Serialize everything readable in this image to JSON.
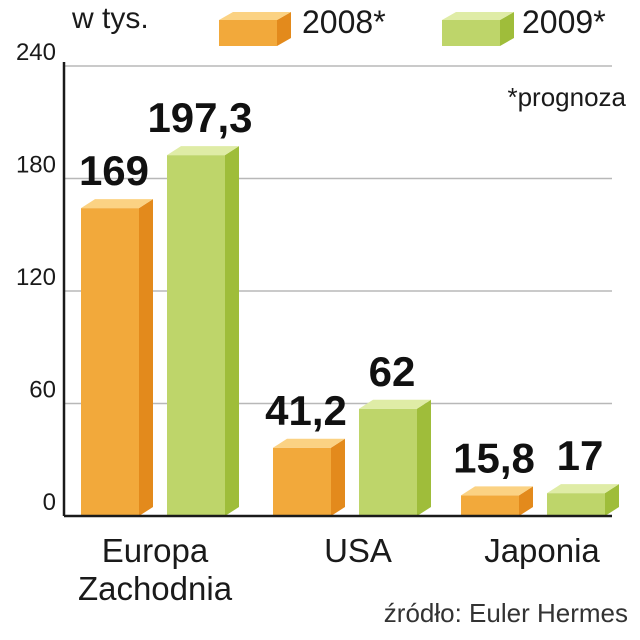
{
  "unit_label": "w tys.",
  "note": "*prognoza",
  "source": "źródło: Euler Hermes",
  "colors": {
    "2008": {
      "front": "#f2a93b",
      "side": "#e38a1c",
      "top": "#fbd283"
    },
    "2009": {
      "front": "#bed56a",
      "side": "#9fbd3a",
      "top": "#dfeca6"
    },
    "grid": "#b8b8b8",
    "axis": "#1a1a1a"
  },
  "chart_data": {
    "type": "bar",
    "categories": [
      "Europa Zachodnia",
      "USA",
      "Japonia"
    ],
    "series": [
      {
        "name": "2008*",
        "values": [
          169,
          41.2,
          15.8
        ],
        "labels": [
          "169",
          "41,2",
          "15,8"
        ]
      },
      {
        "name": "2009*",
        "values": [
          197.3,
          62,
          17
        ],
        "labels": [
          "197,3",
          "62",
          "17"
        ]
      }
    ],
    "yticks": [
      "0",
      "60",
      "120",
      "180",
      "240"
    ],
    "ylim": [
      0,
      240
    ],
    "grid": true,
    "legend": "top"
  },
  "category_lines": [
    [
      "Europa",
      "Zachodnia"
    ],
    [
      "USA"
    ],
    [
      "Japonia"
    ]
  ]
}
